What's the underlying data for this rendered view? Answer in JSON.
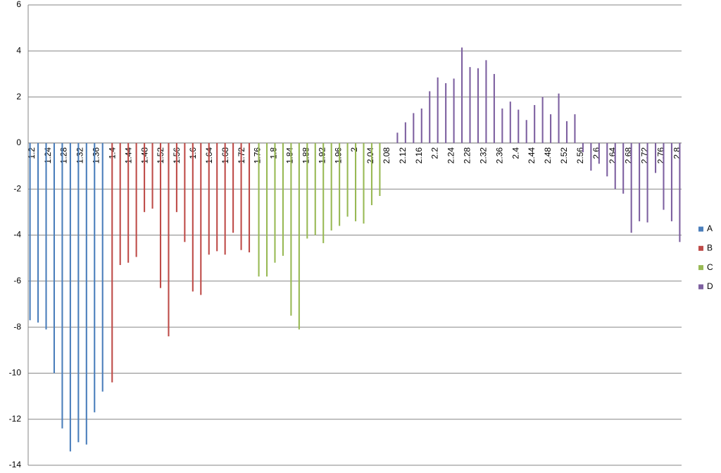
{
  "chart_data": {
    "type": "bar",
    "categories": [
      "1.2",
      null,
      "1.24",
      null,
      "1.28",
      null,
      "1.32",
      null,
      "1.36",
      null,
      "1.4",
      null,
      "1.44",
      null,
      "1.48",
      null,
      "1.52",
      null,
      "1.56",
      null,
      "1.6",
      null,
      "1.64",
      null,
      "1.68",
      null,
      "1.72",
      null,
      "1.76",
      null,
      "1.8",
      null,
      "1.84",
      null,
      "1.88",
      null,
      "1.92",
      null,
      "1.96",
      null,
      "2",
      null,
      "2.04",
      null,
      "2.08",
      null,
      "2.12",
      null,
      "2.16",
      null,
      "2.2",
      null,
      "2.24",
      null,
      "2.28",
      null,
      "2.32",
      null,
      "2.36",
      null,
      "2.4",
      null,
      "2.44",
      null,
      "2.48",
      null,
      "2.52",
      null,
      "2.56",
      null,
      "2.6",
      null,
      "2.64",
      null,
      "2.68",
      null,
      "2.72",
      null,
      "2.76",
      null,
      "2.8"
    ],
    "series": [
      {
        "name": "A",
        "color": "#4a7ebb",
        "values": [
          -7.7,
          -7.8,
          -8.1,
          -10,
          -12.4,
          -13.4,
          -13,
          -13.1,
          -11.7,
          -10.8,
          null,
          null,
          null,
          null,
          null,
          null,
          null,
          null,
          null,
          null,
          null,
          null,
          null,
          null,
          null,
          null,
          null,
          null,
          null,
          null,
          null,
          null,
          null,
          null,
          null,
          null,
          null,
          null,
          null,
          null,
          null,
          null,
          null,
          null,
          null,
          null,
          null,
          null,
          null,
          null,
          null,
          null,
          null,
          null,
          null,
          null,
          null,
          null,
          null,
          null,
          null,
          null,
          null,
          null,
          null,
          null,
          null,
          null,
          null,
          null,
          null,
          null,
          null,
          null,
          null,
          null,
          null,
          null,
          null,
          null,
          null
        ]
      },
      {
        "name": "B",
        "color": "#be4b48",
        "values": [
          null,
          null,
          null,
          null,
          null,
          null,
          null,
          null,
          null,
          null,
          -10.4,
          -5.3,
          -5.2,
          -4.95,
          -3,
          -2.85,
          -6.3,
          -8.4,
          -3,
          -4.3,
          -6.45,
          -6.6,
          -4.85,
          -4.7,
          -4.85,
          -3.9,
          -4.65,
          -4.75,
          null,
          null,
          null,
          null,
          null,
          null,
          null,
          null,
          null,
          null,
          null,
          null,
          null,
          null,
          null,
          null,
          null,
          null,
          null,
          null,
          null,
          null,
          null,
          null,
          null,
          null,
          null,
          null,
          null,
          null,
          null,
          null,
          null,
          null,
          null,
          null,
          null,
          null,
          null,
          null,
          null,
          null,
          null,
          null,
          null,
          null,
          null,
          null,
          null,
          null,
          null,
          null,
          null
        ]
      },
      {
        "name": "C",
        "color": "#98b954",
        "values": [
          null,
          null,
          null,
          null,
          null,
          null,
          null,
          null,
          null,
          null,
          null,
          null,
          null,
          null,
          null,
          null,
          null,
          null,
          null,
          null,
          null,
          null,
          null,
          null,
          null,
          null,
          null,
          null,
          -5.8,
          -5.8,
          -5.2,
          -4.9,
          -7.5,
          -8.1,
          -4.15,
          -4,
          -4.35,
          -3.8,
          -3.6,
          -3.2,
          -3.4,
          -3.5,
          -2.7,
          -2.3,
          0,
          null,
          null,
          null,
          null,
          null,
          null,
          null,
          null,
          null,
          null,
          null,
          null,
          null,
          null,
          null,
          null,
          null,
          null,
          null,
          null,
          null,
          null,
          null,
          null,
          null,
          null,
          null,
          null,
          null,
          null,
          null,
          null,
          null,
          null,
          null,
          null
        ]
      },
      {
        "name": "D",
        "color": "#7d60a0",
        "values": [
          null,
          null,
          null,
          null,
          null,
          null,
          null,
          null,
          null,
          null,
          null,
          null,
          null,
          null,
          null,
          null,
          null,
          null,
          null,
          null,
          null,
          null,
          null,
          null,
          null,
          null,
          null,
          null,
          null,
          null,
          null,
          null,
          null,
          null,
          null,
          null,
          null,
          null,
          null,
          null,
          null,
          null,
          null,
          null,
          null,
          0.45,
          0.9,
          1.3,
          1.5,
          2.25,
          2.85,
          2.6,
          2.8,
          4.15,
          3.3,
          3.25,
          3.6,
          3,
          1.5,
          1.8,
          1.45,
          1,
          1.65,
          2,
          1.25,
          2.15,
          0.95,
          1.25,
          -0.4,
          -1.2,
          -0.9,
          -1.45,
          -2,
          -2.2,
          -3.9,
          -3.4,
          -3.45,
          -1.3,
          -2.9,
          -3.4,
          -4.3
        ]
      }
    ],
    "ylim": [
      -14,
      6
    ],
    "yticks": [
      -14,
      -12,
      -10,
      -8,
      -6,
      -4,
      -2,
      0,
      2,
      4,
      6
    ],
    "grid": true,
    "legend": "right"
  }
}
